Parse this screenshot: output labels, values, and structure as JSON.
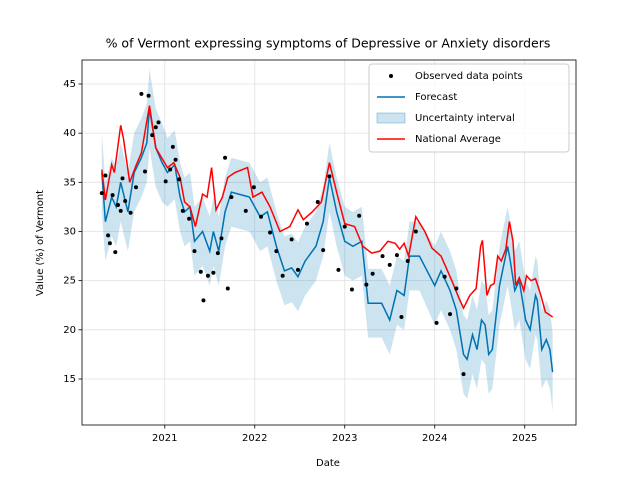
{
  "chart_data": {
    "type": "line",
    "title": "% of Vermont expressing symptoms of Depressive or Anxiety disorders",
    "x_label": "Date",
    "y_label": "Value (%) of Vermont",
    "xlim": [
      2020.08,
      2025.57
    ],
    "xticks": [
      2021,
      2022,
      2023,
      2024,
      2025
    ],
    "ylim": [
      10.32,
      47.44
    ],
    "yticks": [
      15,
      20,
      25,
      30,
      35,
      40,
      45
    ],
    "grid": true,
    "legend": "upper right",
    "series": [
      {
        "name": "Observed data points",
        "type": "scatter",
        "color": "#000000",
        "x": [
          2020.3,
          2020.34,
          2020.37,
          2020.39,
          2020.42,
          2020.45,
          2020.48,
          2020.51,
          2020.53,
          2020.56,
          2020.62,
          2020.68,
          2020.74,
          2020.78,
          2020.82,
          2020.86,
          2020.9,
          2020.93,
          2021.01,
          2021.06,
          2021.09,
          2021.12,
          2021.16,
          2021.2,
          2021.27,
          2021.33,
          2021.4,
          2021.43,
          2021.48,
          2021.54,
          2021.59,
          2021.63,
          2021.67,
          2021.7,
          2021.74,
          2021.9,
          2021.99,
          2022.07,
          2022.17,
          2022.24,
          2022.31,
          2022.41,
          2022.48,
          2022.58,
          2022.7,
          2022.76,
          2022.83,
          2022.93,
          2023.0,
          2023.08,
          2023.16,
          2023.24,
          2023.31,
          2023.42,
          2023.5,
          2023.58,
          2023.63,
          2023.7,
          2023.79,
          2024.02,
          2024.11,
          2024.17,
          2024.24,
          2024.32
        ],
        "values": [
          33.9,
          35.7,
          29.6,
          28.8,
          33.7,
          27.9,
          32.7,
          32.1,
          35.4,
          33.1,
          31.9,
          34.5,
          44.0,
          36.1,
          43.8,
          39.8,
          40.6,
          41.1,
          35.1,
          36.3,
          38.6,
          37.3,
          35.3,
          32.1,
          31.3,
          28.0,
          25.9,
          23.0,
          25.5,
          25.8,
          27.8,
          29.3,
          37.5,
          24.2,
          33.5,
          32.1,
          34.5,
          31.5,
          29.9,
          28.0,
          25.5,
          29.2,
          26.1,
          30.8,
          33.0,
          28.1,
          35.6,
          26.1,
          30.5,
          24.1,
          31.6,
          24.6,
          25.7,
          27.5,
          26.6,
          27.6,
          21.3,
          27.0,
          30.0,
          20.7,
          25.4,
          21.6,
          24.2,
          15.5
        ]
      },
      {
        "name": "Forecast",
        "type": "line",
        "color": "#0072b2",
        "x": [
          2020.3,
          2020.34,
          2020.41,
          2020.46,
          2020.51,
          2020.59,
          2020.66,
          2020.74,
          2020.8,
          2020.83,
          2020.9,
          2020.97,
          2021.03,
          2021.11,
          2021.17,
          2021.22,
          2021.28,
          2021.33,
          2021.42,
          2021.5,
          2021.54,
          2021.6,
          2021.67,
          2021.74,
          2021.94,
          2022.06,
          2022.14,
          2022.24,
          2022.33,
          2022.41,
          2022.48,
          2022.56,
          2022.68,
          2022.76,
          2022.83,
          2022.91,
          2023.0,
          2023.09,
          2023.19,
          2023.26,
          2023.41,
          2023.5,
          2023.58,
          2023.66,
          2023.72,
          2023.83,
          2024.0,
          2024.07,
          2024.17,
          2024.24,
          2024.32,
          2024.36,
          2024.42,
          2024.47,
          2024.52,
          2024.56,
          2024.6,
          2024.64,
          2024.72,
          2024.81,
          2024.84,
          2024.89,
          2024.94,
          2025.01,
          2025.06,
          2025.12,
          2025.14,
          2025.19,
          2025.24,
          2025.28,
          2025.31
        ],
        "values": [
          36,
          31,
          33.5,
          32.5,
          35,
          32,
          36,
          37.5,
          39,
          42.5,
          38.5,
          37,
          36,
          36.8,
          33.5,
          32,
          32.5,
          29,
          30,
          28,
          30,
          28,
          32,
          34,
          33.5,
          31.5,
          32,
          28.5,
          26,
          26.3,
          25.4,
          27,
          28.5,
          31,
          35.5,
          32,
          29,
          28.5,
          29,
          22.7,
          22.7,
          21,
          24,
          23.5,
          27.5,
          27.5,
          24.5,
          26,
          24,
          22,
          17.5,
          17,
          19.5,
          18,
          21,
          20.5,
          17.5,
          18,
          24.5,
          28.5,
          27,
          24,
          25,
          21,
          20,
          23.5,
          23,
          18,
          19,
          18,
          15.7
        ]
      },
      {
        "name": "Uncertainty interval",
        "type": "band",
        "color": "#0072b2",
        "x": [
          2020.3,
          2020.34,
          2020.41,
          2020.46,
          2020.51,
          2020.59,
          2020.66,
          2020.74,
          2020.8,
          2020.83,
          2020.9,
          2020.97,
          2021.03,
          2021.11,
          2021.17,
          2021.22,
          2021.28,
          2021.33,
          2021.42,
          2021.5,
          2021.54,
          2021.6,
          2021.67,
          2021.74,
          2021.94,
          2022.06,
          2022.14,
          2022.24,
          2022.33,
          2022.41,
          2022.48,
          2022.56,
          2022.68,
          2022.76,
          2022.83,
          2022.91,
          2023.0,
          2023.09,
          2023.19,
          2023.26,
          2023.41,
          2023.5,
          2023.58,
          2023.66,
          2023.72,
          2023.83,
          2024.0,
          2024.07,
          2024.17,
          2024.24,
          2024.32,
          2024.36,
          2024.42,
          2024.47,
          2024.52,
          2024.56,
          2024.6,
          2024.64,
          2024.72,
          2024.81,
          2024.84,
          2024.89,
          2024.94,
          2025.01,
          2025.06,
          2025.12,
          2025.14,
          2025.19,
          2025.24,
          2025.28,
          2025.31
        ],
        "upper": [
          40,
          35,
          37.5,
          36.5,
          39,
          36,
          40,
          41.5,
          43,
          46.5,
          42.5,
          41,
          39.5,
          40.3,
          37,
          35.5,
          36,
          32.5,
          33.5,
          31.5,
          33.5,
          31.5,
          35.5,
          37.5,
          37,
          35,
          35.5,
          32,
          29.5,
          29.8,
          28.9,
          30.5,
          32,
          34.5,
          39,
          35.5,
          32.5,
          32,
          32.5,
          26.2,
          26.2,
          24.5,
          27.5,
          27,
          31,
          31,
          28.5,
          30,
          28,
          26,
          21.5,
          21,
          23.5,
          22,
          25,
          24.5,
          21.5,
          22,
          28.5,
          32.5,
          31,
          28,
          29,
          25,
          24,
          27.5,
          27,
          22,
          23,
          22,
          19.7
        ],
        "lower": [
          32,
          27,
          29.5,
          28.5,
          31,
          28,
          32,
          33.5,
          35,
          38.5,
          34.5,
          33,
          32.5,
          33.3,
          30,
          28.5,
          29,
          25.5,
          26.5,
          24.5,
          26.5,
          24.5,
          28.5,
          30.5,
          30,
          28,
          28.5,
          25,
          22.5,
          22.8,
          21.9,
          23.5,
          25,
          27.5,
          32,
          28.5,
          25.5,
          25,
          25.5,
          19.2,
          19.2,
          17.5,
          20.5,
          20,
          24,
          24,
          20.5,
          22,
          20,
          18,
          13.5,
          13,
          15.5,
          14,
          17,
          16.5,
          13.5,
          14,
          20.5,
          24.5,
          23,
          20,
          21,
          17,
          16,
          19.5,
          19,
          14,
          15,
          14,
          11.7
        ]
      },
      {
        "name": "National Average",
        "type": "line",
        "color": "#ff0000",
        "x": [
          2020.3,
          2020.34,
          2020.41,
          2020.44,
          2020.51,
          2020.54,
          2020.61,
          2020.68,
          2020.74,
          2020.83,
          2020.9,
          2021.03,
          2021.1,
          2021.17,
          2021.22,
          2021.28,
          2021.34,
          2021.42,
          2021.47,
          2021.52,
          2021.57,
          2021.64,
          2021.7,
          2021.78,
          2021.92,
          2021.98,
          2022.08,
          2022.17,
          2022.28,
          2022.39,
          2022.48,
          2022.54,
          2022.64,
          2022.74,
          2022.83,
          2022.91,
          2023.0,
          2023.11,
          2023.2,
          2023.3,
          2023.39,
          2023.48,
          2023.56,
          2023.61,
          2023.66,
          2023.71,
          2023.79,
          2023.89,
          2023.97,
          2024.07,
          2024.19,
          2024.27,
          2024.32,
          2024.39,
          2024.46,
          2024.51,
          2024.53,
          2024.58,
          2024.62,
          2024.66,
          2024.7,
          2024.74,
          2024.79,
          2024.83,
          2024.87,
          2024.9,
          2024.94,
          2024.99,
          2025.02,
          2025.07,
          2025.12,
          2025.18,
          2025.23,
          2025.28,
          2025.31
        ],
        "values": [
          36.3,
          33.2,
          36.8,
          36,
          40.8,
          39.5,
          35,
          36.7,
          38,
          42.8,
          38.5,
          36.5,
          37,
          35.5,
          33,
          32.5,
          30.5,
          33.8,
          33.5,
          36.5,
          32.2,
          33.5,
          35.5,
          36,
          36.5,
          33.5,
          34,
          32.5,
          30,
          30.5,
          32.2,
          31.2,
          32,
          33,
          37,
          34,
          30.8,
          30.5,
          28.5,
          27.8,
          28,
          29,
          28.8,
          28.2,
          28.8,
          27.5,
          31.5,
          30,
          28.3,
          27.5,
          25,
          23.2,
          22.2,
          23.5,
          24.2,
          28.5,
          29.1,
          23.5,
          24.5,
          24.7,
          27.5,
          27,
          28.2,
          31,
          29,
          24.5,
          25.3,
          24,
          25.5,
          25,
          25.2,
          23.5,
          21.8,
          21.5,
          21.3
        ]
      }
    ]
  }
}
